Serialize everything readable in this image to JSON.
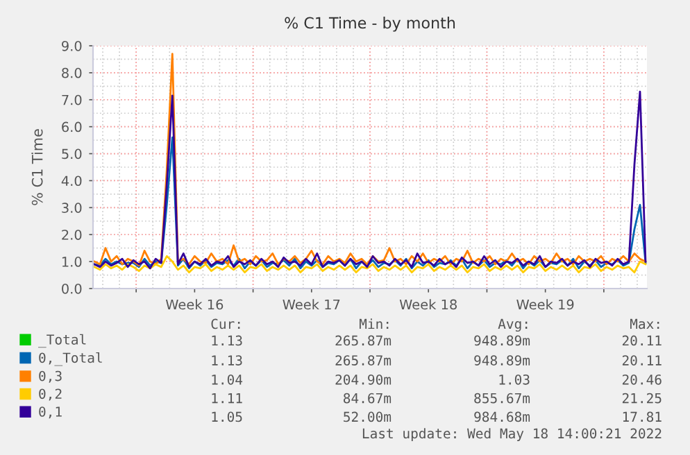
{
  "chart_data": {
    "type": "line",
    "title": "% C1 Time - by month",
    "ylabel": "% C1 Time",
    "xlim": [
      "2022-04-15T10:00",
      "2022-05-18T14:00"
    ],
    "xticks": [
      {
        "value": "2022-04-18",
        "label": null
      },
      {
        "value": "2022-04-21T12:00",
        "label": "Week 16"
      },
      {
        "value": "2022-04-25",
        "label": null
      },
      {
        "value": "2022-04-28T12:00",
        "label": "Week 17"
      },
      {
        "value": "2022-05-02",
        "label": null
      },
      {
        "value": "2022-05-05T12:00",
        "label": "Week 18"
      },
      {
        "value": "2022-05-09",
        "label": null
      },
      {
        "value": "2022-05-12T12:00",
        "label": "Week 19"
      },
      {
        "value": "2022-05-16",
        "label": null
      }
    ],
    "ylim": [
      0,
      9
    ],
    "yticks": [
      {
        "value": 0,
        "label": "0.0"
      },
      {
        "value": 1,
        "label": "1.0"
      },
      {
        "value": 2,
        "label": "2.0"
      },
      {
        "value": 3,
        "label": "3.0"
      },
      {
        "value": 4,
        "label": "4.0"
      },
      {
        "value": 5,
        "label": "5.0"
      },
      {
        "value": 6,
        "label": "6.0"
      },
      {
        "value": 7,
        "label": "7.0"
      },
      {
        "value": 8,
        "label": "8.0"
      },
      {
        "value": 9,
        "label": "9.0"
      }
    ],
    "grid": true,
    "legend": "bottom",
    "x": [
      "2022-04-15T12:00",
      "2022-04-15T20:00",
      "2022-04-16T04:00",
      "2022-04-16T12:00",
      "2022-04-16T20:00",
      "2022-04-17T04:00",
      "2022-04-17T12:00",
      "2022-04-17T20:00",
      "2022-04-18T04:00",
      "2022-04-18T12:00",
      "2022-04-18T20:00",
      "2022-04-19T04:00",
      "2022-04-19T12:00",
      "2022-04-19T20:00",
      "2022-04-20T04:00",
      "2022-04-20T12:00",
      "2022-04-20T20:00",
      "2022-04-21T04:00",
      "2022-04-21T12:00",
      "2022-04-21T20:00",
      "2022-04-22T04:00",
      "2022-04-22T12:00",
      "2022-04-22T20:00",
      "2022-04-23T04:00",
      "2022-04-23T12:00",
      "2022-04-23T20:00",
      "2022-04-24T04:00",
      "2022-04-24T12:00",
      "2022-04-24T20:00",
      "2022-04-25T04:00",
      "2022-04-25T12:00",
      "2022-04-25T20:00",
      "2022-04-26T04:00",
      "2022-04-26T12:00",
      "2022-04-26T20:00",
      "2022-04-27T04:00",
      "2022-04-27T12:00",
      "2022-04-27T20:00",
      "2022-04-28T04:00",
      "2022-04-28T12:00",
      "2022-04-28T20:00",
      "2022-04-29T04:00",
      "2022-04-29T12:00",
      "2022-04-29T20:00",
      "2022-04-30T04:00",
      "2022-04-30T12:00",
      "2022-04-30T20:00",
      "2022-05-01T04:00",
      "2022-05-01T12:00",
      "2022-05-01T20:00",
      "2022-05-02T04:00",
      "2022-05-02T12:00",
      "2022-05-02T20:00",
      "2022-05-03T04:00",
      "2022-05-03T12:00",
      "2022-05-03T20:00",
      "2022-05-04T04:00",
      "2022-05-04T12:00",
      "2022-05-04T20:00",
      "2022-05-05T04:00",
      "2022-05-05T12:00",
      "2022-05-05T20:00",
      "2022-05-06T04:00",
      "2022-05-06T12:00",
      "2022-05-06T20:00",
      "2022-05-07T04:00",
      "2022-05-07T12:00",
      "2022-05-07T20:00",
      "2022-05-08T04:00",
      "2022-05-08T12:00",
      "2022-05-08T20:00",
      "2022-05-09T04:00",
      "2022-05-09T12:00",
      "2022-05-09T20:00",
      "2022-05-10T04:00",
      "2022-05-10T12:00",
      "2022-05-10T20:00",
      "2022-05-11T04:00",
      "2022-05-11T12:00",
      "2022-05-11T20:00",
      "2022-05-12T04:00",
      "2022-05-12T12:00",
      "2022-05-12T20:00",
      "2022-05-13T04:00",
      "2022-05-13T12:00",
      "2022-05-13T20:00",
      "2022-05-14T04:00",
      "2022-05-14T12:00",
      "2022-05-14T20:00",
      "2022-05-15T04:00",
      "2022-05-15T12:00",
      "2022-05-15T20:00",
      "2022-05-16T04:00",
      "2022-05-16T12:00",
      "2022-05-16T20:00",
      "2022-05-17T04:00",
      "2022-05-17T12:00",
      "2022-05-17T20:00",
      "2022-05-18T04:00",
      "2022-05-18T12:00"
    ],
    "series": [
      {
        "name": "_Total",
        "color": "#00cc00",
        "values": [
          null,
          null,
          null,
          null,
          null,
          null,
          null,
          null,
          null,
          null,
          null,
          null,
          null,
          null,
          null,
          null,
          null,
          null,
          null,
          null,
          null,
          null,
          null,
          null,
          null,
          null,
          null,
          null,
          null,
          null,
          null,
          null,
          null,
          null,
          null,
          null,
          null,
          null,
          null,
          null,
          null,
          null,
          null,
          null,
          null,
          null,
          null,
          null,
          null,
          null,
          null,
          null,
          null,
          null,
          null,
          null,
          null,
          null,
          null,
          null,
          null,
          null,
          null,
          null,
          null,
          null,
          null,
          null,
          null,
          null,
          null,
          null,
          null,
          null,
          null,
          null,
          null,
          null,
          null,
          null,
          null,
          null,
          null,
          null,
          null,
          null,
          null,
          null,
          null,
          null,
          null,
          null,
          null,
          null,
          null,
          null,
          null,
          null,
          null,
          null
        ]
      },
      {
        "name": "0,_Total",
        "color": "#0066b3",
        "values": [
          0.9,
          0.85,
          1.1,
          0.9,
          1.0,
          0.9,
          0.95,
          0.95,
          0.8,
          1.1,
          0.85,
          1.0,
          0.95,
          3.1,
          5.6,
          0.85,
          1.1,
          0.75,
          1.0,
          0.85,
          1.05,
          0.8,
          0.95,
          0.9,
          1.05,
          0.85,
          1.1,
          0.75,
          1.0,
          0.85,
          1.05,
          0.8,
          0.95,
          0.9,
          1.05,
          0.85,
          1.1,
          0.75,
          1.0,
          0.85,
          1.05,
          0.8,
          0.95,
          0.9,
          1.05,
          0.85,
          1.1,
          0.75,
          1.0,
          0.85,
          1.05,
          0.8,
          0.95,
          0.9,
          1.05,
          0.85,
          1.1,
          0.75,
          1.0,
          0.85,
          1.05,
          0.8,
          0.95,
          0.9,
          1.05,
          0.85,
          1.1,
          0.75,
          1.0,
          0.85,
          1.05,
          0.8,
          0.95,
          0.9,
          1.05,
          0.85,
          1.1,
          0.75,
          1.0,
          0.85,
          1.05,
          0.8,
          0.95,
          0.9,
          1.05,
          0.85,
          1.1,
          0.75,
          1.0,
          0.85,
          1.05,
          0.8,
          0.95,
          0.9,
          1.05,
          0.85,
          0.95,
          2.2,
          3.1,
          0.95
        ]
      },
      {
        "name": "0,3",
        "color": "#ff8000",
        "values": [
          1.0,
          0.9,
          1.5,
          1.0,
          1.2,
          0.9,
          1.1,
          1.0,
          0.85,
          1.4,
          1.0,
          0.9,
          1.1,
          4.4,
          8.7,
          1.0,
          1.1,
          0.9,
          1.2,
          1.0,
          0.95,
          1.3,
          1.0,
          1.1,
          0.9,
          1.6,
          1.0,
          1.1,
          0.9,
          1.2,
          1.0,
          1.05,
          1.3,
          0.9,
          1.1,
          1.0,
          1.2,
          0.95,
          1.1,
          1.4,
          1.0,
          0.9,
          1.2,
          1.0,
          1.1,
          0.95,
          1.3,
          1.0,
          1.1,
          0.9,
          1.2,
          1.0,
          1.05,
          1.5,
          1.0,
          1.1,
          0.9,
          1.2,
          1.0,
          1.3,
          0.95,
          1.1,
          1.0,
          1.2,
          0.9,
          1.1,
          1.0,
          1.4,
          0.95,
          1.1,
          1.0,
          1.2,
          0.9,
          1.1,
          1.0,
          1.3,
          1.0,
          1.1,
          0.9,
          1.2,
          1.0,
          1.1,
          0.95,
          1.3,
          1.0,
          1.1,
          0.9,
          1.2,
          1.0,
          1.1,
          1.0,
          1.2,
          0.9,
          1.1,
          1.0,
          1.2,
          1.0,
          1.3,
          1.1,
          1.0
        ]
      },
      {
        "name": "0,2",
        "color": "#ffcc00",
        "values": [
          0.8,
          0.7,
          0.9,
          0.75,
          0.85,
          0.7,
          0.9,
          0.8,
          0.65,
          0.85,
          0.75,
          0.9,
          0.8,
          1.2,
          1.0,
          0.7,
          0.85,
          0.6,
          0.8,
          0.75,
          0.9,
          0.65,
          0.8,
          0.7,
          0.85,
          0.7,
          0.85,
          0.6,
          0.8,
          0.75,
          0.9,
          0.65,
          0.8,
          0.7,
          0.85,
          0.7,
          0.85,
          0.6,
          0.8,
          0.75,
          0.9,
          0.65,
          0.8,
          0.7,
          0.85,
          0.7,
          0.85,
          0.6,
          0.8,
          0.75,
          0.9,
          0.65,
          0.8,
          0.7,
          0.85,
          0.7,
          0.85,
          0.6,
          0.8,
          0.75,
          0.9,
          0.65,
          0.8,
          0.7,
          0.85,
          0.7,
          0.85,
          0.6,
          0.8,
          0.75,
          0.9,
          0.65,
          0.8,
          0.7,
          0.85,
          0.7,
          0.85,
          0.6,
          0.8,
          0.75,
          0.9,
          0.65,
          0.8,
          0.7,
          0.85,
          0.7,
          0.85,
          0.6,
          0.8,
          0.75,
          0.9,
          0.65,
          0.8,
          0.7,
          0.85,
          0.75,
          0.8,
          0.6,
          1.0,
          0.9
        ]
      },
      {
        "name": "0,1",
        "color": "#330099",
        "values": [
          0.9,
          0.8,
          1.0,
          0.85,
          0.95,
          1.1,
          0.8,
          1.05,
          0.9,
          1.0,
          0.75,
          1.1,
          0.95,
          3.85,
          7.15,
          0.9,
          1.3,
          0.8,
          1.0,
          0.9,
          1.1,
          0.85,
          1.0,
          0.95,
          1.2,
          0.8,
          1.0,
          0.9,
          1.05,
          0.85,
          1.1,
          0.9,
          1.0,
          0.8,
          1.15,
          0.95,
          1.0,
          0.85,
          1.1,
          0.9,
          1.3,
          0.8,
          1.0,
          0.95,
          1.05,
          0.85,
          1.1,
          0.9,
          1.0,
          0.8,
          1.2,
          0.95,
          1.0,
          0.85,
          1.1,
          0.9,
          1.05,
          0.8,
          1.3,
          0.95,
          1.0,
          0.85,
          1.1,
          0.9,
          1.0,
          0.8,
          1.15,
          0.95,
          1.0,
          0.85,
          1.2,
          0.9,
          1.05,
          0.8,
          1.0,
          0.95,
          1.1,
          0.85,
          1.0,
          0.9,
          1.2,
          0.8,
          1.0,
          0.95,
          1.1,
          0.85,
          1.0,
          0.9,
          1.05,
          0.8,
          1.1,
          0.95,
          1.0,
          0.85,
          1.1,
          0.9,
          1.0,
          4.6,
          7.3,
          1.0
        ]
      }
    ],
    "annotations": [
      "Cur:",
      "Min:",
      "Avg:",
      "Max:",
      "1.13",
      "265.87m",
      "948.89m",
      "20.11",
      "1.13",
      "265.87m",
      "948.89m",
      "20.11",
      "1.04",
      "204.90m",
      "1.03",
      "20.46",
      "1.11",
      "84.67m",
      "855.67m",
      "21.25",
      "1.05",
      "52.00m",
      "984.68m",
      "17.81",
      "Last update: Wed May 18 14:00:21 2022"
    ]
  }
}
